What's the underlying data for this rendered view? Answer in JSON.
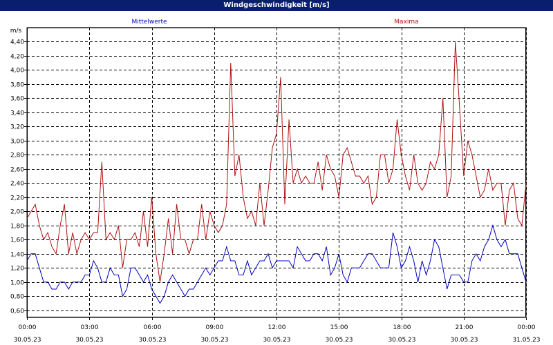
{
  "window": {
    "title": "Windgeschwindigkeit [m/s]"
  },
  "chart_data": {
    "type": "line",
    "title": "Windgeschwindigkeit [m/s]",
    "ylabel": "m/s",
    "ylim": [
      0.5,
      4.6
    ],
    "y_ticks": [
      "0,60",
      "0,80",
      "1,00",
      "1,20",
      "1,40",
      "1,60",
      "1,80",
      "2,00",
      "2,20",
      "2,40",
      "2,60",
      "2,80",
      "3,00",
      "3,20",
      "3,40",
      "3,60",
      "3,80",
      "4,00",
      "4,20",
      "4,40"
    ],
    "y_tick_values": [
      0.6,
      0.8,
      1.0,
      1.2,
      1.4,
      1.6,
      1.8,
      2.0,
      2.2,
      2.4,
      2.6,
      2.8,
      3.0,
      3.2,
      3.4,
      3.6,
      3.8,
      4.0,
      4.2,
      4.4
    ],
    "xlim": [
      0,
      24
    ],
    "x_ticks": [
      {
        "x": 0,
        "time": "00:00",
        "date": "30.05.23"
      },
      {
        "x": 3,
        "time": "03:00",
        "date": "30.05.23"
      },
      {
        "x": 6,
        "time": "06:00",
        "date": "30.05.23"
      },
      {
        "x": 9,
        "time": "09:00",
        "date": "30.05.23"
      },
      {
        "x": 12,
        "time": "12:00",
        "date": "30.05.23"
      },
      {
        "x": 15,
        "time": "15:00",
        "date": "30.05.23"
      },
      {
        "x": 18,
        "time": "18:00",
        "date": "30.05.23"
      },
      {
        "x": 21,
        "time": "21:00",
        "date": "30.05.23"
      },
      {
        "x": 24,
        "time": "00:00",
        "date": "31.05.23"
      }
    ],
    "grid": true,
    "legend_placement": "top",
    "series": [
      {
        "name": "Mittelwerte",
        "color": "#0000c0",
        "points": [
          [
            0,
            1.3
          ],
          [
            0.2,
            1.4
          ],
          [
            0.4,
            1.4
          ],
          [
            0.6,
            1.2
          ],
          [
            0.8,
            1.0
          ],
          [
            1.0,
            1.0
          ],
          [
            1.2,
            0.9
          ],
          [
            1.4,
            0.9
          ],
          [
            1.6,
            1.0
          ],
          [
            1.8,
            1.0
          ],
          [
            2.0,
            0.9
          ],
          [
            2.2,
            1.0
          ],
          [
            2.4,
            1.0
          ],
          [
            2.6,
            1.0
          ],
          [
            2.8,
            1.1
          ],
          [
            3.0,
            1.1
          ],
          [
            3.2,
            1.3
          ],
          [
            3.4,
            1.2
          ],
          [
            3.6,
            1.0
          ],
          [
            3.8,
            1.0
          ],
          [
            4.0,
            1.2
          ],
          [
            4.2,
            1.1
          ],
          [
            4.4,
            1.1
          ],
          [
            4.6,
            0.8
          ],
          [
            4.8,
            0.9
          ],
          [
            5.0,
            1.2
          ],
          [
            5.2,
            1.2
          ],
          [
            5.4,
            1.1
          ],
          [
            5.6,
            1.0
          ],
          [
            5.8,
            1.1
          ],
          [
            6.0,
            0.9
          ],
          [
            6.2,
            0.8
          ],
          [
            6.4,
            0.7
          ],
          [
            6.6,
            0.8
          ],
          [
            6.8,
            1.0
          ],
          [
            7.0,
            1.1
          ],
          [
            7.2,
            1.0
          ],
          [
            7.4,
            0.9
          ],
          [
            7.6,
            0.8
          ],
          [
            7.8,
            0.9
          ],
          [
            8.0,
            0.9
          ],
          [
            8.2,
            1.0
          ],
          [
            8.4,
            1.1
          ],
          [
            8.6,
            1.2
          ],
          [
            8.8,
            1.1
          ],
          [
            9.0,
            1.2
          ],
          [
            9.2,
            1.3
          ],
          [
            9.4,
            1.3
          ],
          [
            9.6,
            1.5
          ],
          [
            9.8,
            1.3
          ],
          [
            10.0,
            1.3
          ],
          [
            10.2,
            1.1
          ],
          [
            10.4,
            1.1
          ],
          [
            10.6,
            1.3
          ],
          [
            10.8,
            1.1
          ],
          [
            11.0,
            1.2
          ],
          [
            11.2,
            1.3
          ],
          [
            11.4,
            1.3
          ],
          [
            11.6,
            1.4
          ],
          [
            11.8,
            1.2
          ],
          [
            12.0,
            1.3
          ],
          [
            12.2,
            1.3
          ],
          [
            12.4,
            1.3
          ],
          [
            12.6,
            1.3
          ],
          [
            12.8,
            1.2
          ],
          [
            13.0,
            1.5
          ],
          [
            13.2,
            1.4
          ],
          [
            13.4,
            1.3
          ],
          [
            13.6,
            1.3
          ],
          [
            13.8,
            1.4
          ],
          [
            14.0,
            1.4
          ],
          [
            14.2,
            1.3
          ],
          [
            14.4,
            1.5
          ],
          [
            14.6,
            1.1
          ],
          [
            14.8,
            1.2
          ],
          [
            15.0,
            1.4
          ],
          [
            15.2,
            1.1
          ],
          [
            15.4,
            1.0
          ],
          [
            15.6,
            1.2
          ],
          [
            15.8,
            1.2
          ],
          [
            16.0,
            1.2
          ],
          [
            16.2,
            1.3
          ],
          [
            16.4,
            1.4
          ],
          [
            16.6,
            1.4
          ],
          [
            16.8,
            1.3
          ],
          [
            17.0,
            1.2
          ],
          [
            17.2,
            1.2
          ],
          [
            17.4,
            1.2
          ],
          [
            17.6,
            1.7
          ],
          [
            17.8,
            1.5
          ],
          [
            18.0,
            1.2
          ],
          [
            18.2,
            1.3
          ],
          [
            18.4,
            1.5
          ],
          [
            18.6,
            1.3
          ],
          [
            18.8,
            1.0
          ],
          [
            19.0,
            1.3
          ],
          [
            19.2,
            1.1
          ],
          [
            19.4,
            1.3
          ],
          [
            19.6,
            1.6
          ],
          [
            19.8,
            1.5
          ],
          [
            20.0,
            1.2
          ],
          [
            20.2,
            0.9
          ],
          [
            20.4,
            1.1
          ],
          [
            20.6,
            1.1
          ],
          [
            20.8,
            1.1
          ],
          [
            21.0,
            1.0
          ],
          [
            21.2,
            1.0
          ],
          [
            21.4,
            1.3
          ],
          [
            21.6,
            1.4
          ],
          [
            21.8,
            1.3
          ],
          [
            22.0,
            1.5
          ],
          [
            22.2,
            1.6
          ],
          [
            22.4,
            1.8
          ],
          [
            22.6,
            1.6
          ],
          [
            22.8,
            1.5
          ],
          [
            23.0,
            1.6
          ],
          [
            23.2,
            1.4
          ],
          [
            23.4,
            1.4
          ],
          [
            23.6,
            1.4
          ],
          [
            23.8,
            1.2
          ],
          [
            24.0,
            1.0
          ]
        ]
      },
      {
        "name": "Maxima",
        "color": "#b01010",
        "points": [
          [
            0,
            1.9
          ],
          [
            0.2,
            2.0
          ],
          [
            0.4,
            2.1
          ],
          [
            0.6,
            1.8
          ],
          [
            0.8,
            1.6
          ],
          [
            1.0,
            1.7
          ],
          [
            1.2,
            1.5
          ],
          [
            1.4,
            1.4
          ],
          [
            1.6,
            1.8
          ],
          [
            1.8,
            2.1
          ],
          [
            2.0,
            1.4
          ],
          [
            2.2,
            1.7
          ],
          [
            2.4,
            1.4
          ],
          [
            2.6,
            1.6
          ],
          [
            2.8,
            1.7
          ],
          [
            3.0,
            1.6
          ],
          [
            3.2,
            1.7
          ],
          [
            3.4,
            1.7
          ],
          [
            3.6,
            2.7
          ],
          [
            3.8,
            1.6
          ],
          [
            4.0,
            1.7
          ],
          [
            4.2,
            1.6
          ],
          [
            4.4,
            1.8
          ],
          [
            4.6,
            1.2
          ],
          [
            4.8,
            1.6
          ],
          [
            5.0,
            1.6
          ],
          [
            5.2,
            1.7
          ],
          [
            5.4,
            1.5
          ],
          [
            5.6,
            2.0
          ],
          [
            5.8,
            1.5
          ],
          [
            6.0,
            2.2
          ],
          [
            6.2,
            1.4
          ],
          [
            6.4,
            1.0
          ],
          [
            6.6,
            1.4
          ],
          [
            6.8,
            1.9
          ],
          [
            7.0,
            1.4
          ],
          [
            7.2,
            2.1
          ],
          [
            7.4,
            1.6
          ],
          [
            7.6,
            1.6
          ],
          [
            7.8,
            1.4
          ],
          [
            8.0,
            1.6
          ],
          [
            8.2,
            1.6
          ],
          [
            8.4,
            2.1
          ],
          [
            8.6,
            1.6
          ],
          [
            8.8,
            2.0
          ],
          [
            9.0,
            1.8
          ],
          [
            9.2,
            1.7
          ],
          [
            9.4,
            1.8
          ],
          [
            9.6,
            2.1
          ],
          [
            9.8,
            4.1
          ],
          [
            10.0,
            2.5
          ],
          [
            10.2,
            2.8
          ],
          [
            10.4,
            2.2
          ],
          [
            10.6,
            1.9
          ],
          [
            10.8,
            2.0
          ],
          [
            11.0,
            1.8
          ],
          [
            11.2,
            2.4
          ],
          [
            11.4,
            1.8
          ],
          [
            11.6,
            2.3
          ],
          [
            11.8,
            2.9
          ],
          [
            12.0,
            3.1
          ],
          [
            12.2,
            3.9
          ],
          [
            12.4,
            2.1
          ],
          [
            12.6,
            3.3
          ],
          [
            12.8,
            2.4
          ],
          [
            13.0,
            2.6
          ],
          [
            13.2,
            2.4
          ],
          [
            13.4,
            2.5
          ],
          [
            13.6,
            2.4
          ],
          [
            13.8,
            2.4
          ],
          [
            14.0,
            2.7
          ],
          [
            14.2,
            2.3
          ],
          [
            14.4,
            2.8
          ],
          [
            14.6,
            2.6
          ],
          [
            14.8,
            2.5
          ],
          [
            15.0,
            2.2
          ],
          [
            15.2,
            2.8
          ],
          [
            15.4,
            2.9
          ],
          [
            15.6,
            2.7
          ],
          [
            15.8,
            2.5
          ],
          [
            16.0,
            2.5
          ],
          [
            16.2,
            2.4
          ],
          [
            16.4,
            2.5
          ],
          [
            16.6,
            2.1
          ],
          [
            16.8,
            2.2
          ],
          [
            17.0,
            2.8
          ],
          [
            17.2,
            2.8
          ],
          [
            17.4,
            2.4
          ],
          [
            17.6,
            2.6
          ],
          [
            17.8,
            3.3
          ],
          [
            18.0,
            2.8
          ],
          [
            18.2,
            2.5
          ],
          [
            18.4,
            2.3
          ],
          [
            18.6,
            2.8
          ],
          [
            18.8,
            2.4
          ],
          [
            19.0,
            2.3
          ],
          [
            19.2,
            2.4
          ],
          [
            19.4,
            2.7
          ],
          [
            19.6,
            2.6
          ],
          [
            19.8,
            2.8
          ],
          [
            20.0,
            3.6
          ],
          [
            20.2,
            2.2
          ],
          [
            20.4,
            2.5
          ],
          [
            20.6,
            4.4
          ],
          [
            20.8,
            3.5
          ],
          [
            21.0,
            2.5
          ],
          [
            21.2,
            3.0
          ],
          [
            21.4,
            2.8
          ],
          [
            21.6,
            2.5
          ],
          [
            21.8,
            2.2
          ],
          [
            22.0,
            2.3
          ],
          [
            22.2,
            2.6
          ],
          [
            22.4,
            2.3
          ],
          [
            22.6,
            2.4
          ],
          [
            22.8,
            2.4
          ],
          [
            23.0,
            1.8
          ],
          [
            23.2,
            2.3
          ],
          [
            23.4,
            2.4
          ],
          [
            23.6,
            1.9
          ],
          [
            23.8,
            1.8
          ],
          [
            24.0,
            2.4
          ]
        ]
      }
    ]
  }
}
